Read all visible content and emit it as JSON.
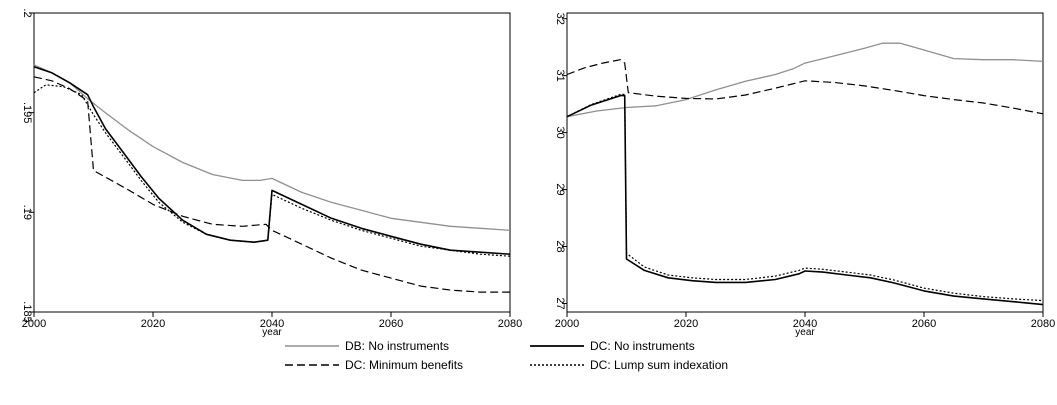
{
  "chart_data": [
    {
      "type": "line",
      "xlabel": "year",
      "ylabel": "",
      "xlim": [
        2000,
        2080
      ],
      "ylim": [
        0.185,
        0.2
      ],
      "xticks": [
        "2000",
        "2020",
        "2040",
        "2060",
        "2080"
      ],
      "xtick_values": [
        2000,
        2020,
        2040,
        2060,
        2080
      ],
      "yticks": [
        ".185",
        ".19",
        ".195",
        ".2"
      ],
      "ytick_values": [
        0.185,
        0.19,
        0.195,
        0.2
      ],
      "series": [
        {
          "name": "DB: No instruments",
          "points": [
            [
              2000,
              0.1974
            ],
            [
              2003,
              0.197
            ],
            [
              2006,
              0.1965
            ],
            [
              2009,
              0.1957
            ],
            [
              2012,
              0.195
            ],
            [
              2016,
              0.1941
            ],
            [
              2020,
              0.1933
            ],
            [
              2025,
              0.1925
            ],
            [
              2030,
              0.1919
            ],
            [
              2035,
              0.1916
            ],
            [
              2038,
              0.1916
            ],
            [
              2040,
              0.1917
            ],
            [
              2045,
              0.191
            ],
            [
              2050,
              0.1905
            ],
            [
              2055,
              0.1901
            ],
            [
              2060,
              0.1897
            ],
            [
              2065,
              0.1895
            ],
            [
              2070,
              0.1893
            ],
            [
              2075,
              0.1892
            ],
            [
              2080,
              0.1891
            ]
          ]
        },
        {
          "name": "DC: No instruments",
          "points": [
            [
              2000,
              0.1973
            ],
            [
              2003,
              0.197
            ],
            [
              2006,
              0.1965
            ],
            [
              2009,
              0.1959
            ],
            [
              2010,
              0.1953
            ],
            [
              2012,
              0.1942
            ],
            [
              2015,
              0.193
            ],
            [
              2018,
              0.1918
            ],
            [
              2021,
              0.1907
            ],
            [
              2025,
              0.1896
            ],
            [
              2029,
              0.1889
            ],
            [
              2033,
              0.1886
            ],
            [
              2037,
              0.1885
            ],
            [
              2039.3,
              0.1886
            ],
            [
              2040,
              0.1911
            ],
            [
              2045,
              0.1904
            ],
            [
              2050,
              0.1897
            ],
            [
              2055,
              0.1892
            ],
            [
              2060,
              0.1888
            ],
            [
              2065,
              0.1884
            ],
            [
              2070,
              0.1881
            ],
            [
              2075,
              0.188
            ],
            [
              2080,
              0.1879
            ]
          ]
        },
        {
          "name": "DC: Minimum benefits",
          "points": [
            [
              2000,
              0.1968
            ],
            [
              2003,
              0.1966
            ],
            [
              2006,
              0.1962
            ],
            [
              2009,
              0.1956
            ],
            [
              2010,
              0.1921
            ],
            [
              2013,
              0.1916
            ],
            [
              2016,
              0.1911
            ],
            [
              2020,
              0.1904
            ],
            [
              2025,
              0.1898
            ],
            [
              2030,
              0.1894
            ],
            [
              2035,
              0.1893
            ],
            [
              2039,
              0.1894
            ],
            [
              2040,
              0.1891
            ],
            [
              2045,
              0.1884
            ],
            [
              2050,
              0.1877
            ],
            [
              2055,
              0.1871
            ],
            [
              2060,
              0.1867
            ],
            [
              2065,
              0.1863
            ],
            [
              2070,
              0.1861
            ],
            [
              2075,
              0.186
            ],
            [
              2080,
              0.186
            ]
          ]
        },
        {
          "name": "DC: Lump sum indexation",
          "points": [
            [
              2000,
              0.196
            ],
            [
              2002,
              0.1964
            ],
            [
              2005,
              0.1963
            ],
            [
              2008,
              0.1959
            ],
            [
              2010,
              0.1949
            ],
            [
              2012,
              0.194
            ],
            [
              2015,
              0.1928
            ],
            [
              2018,
              0.1916
            ],
            [
              2021,
              0.1905
            ],
            [
              2025,
              0.1895
            ],
            [
              2029,
              0.1889
            ],
            [
              2033,
              0.1886
            ],
            [
              2037,
              0.1885
            ],
            [
              2039.3,
              0.1886
            ],
            [
              2040,
              0.1909
            ],
            [
              2045,
              0.1902
            ],
            [
              2050,
              0.1896
            ],
            [
              2055,
              0.1891
            ],
            [
              2060,
              0.1887
            ],
            [
              2065,
              0.1883
            ],
            [
              2070,
              0.1881
            ],
            [
              2075,
              0.1879
            ],
            [
              2080,
              0.1878
            ]
          ]
        }
      ]
    },
    {
      "type": "line",
      "xlabel": "year",
      "ylabel": "",
      "xlim": [
        2000,
        2080
      ],
      "ylim": [
        26.85,
        32.1
      ],
      "xticks": [
        "2000",
        "2020",
        "2040",
        "2060",
        "2080"
      ],
      "xtick_values": [
        2000,
        2020,
        2040,
        2060,
        2080
      ],
      "yticks": [
        "27",
        "28",
        "29",
        "30",
        "31",
        "32"
      ],
      "ytick_values": [
        27,
        28,
        29,
        30,
        31,
        32
      ],
      "series": [
        {
          "name": "DB: No instruments",
          "points": [
            [
              2000,
              30.28
            ],
            [
              2005,
              30.38
            ],
            [
              2010,
              30.44
            ],
            [
              2015,
              30.47
            ],
            [
              2020,
              30.58
            ],
            [
              2025,
              30.75
            ],
            [
              2030,
              30.9
            ],
            [
              2035,
              31.02
            ],
            [
              2038,
              31.12
            ],
            [
              2040,
              31.22
            ],
            [
              2045,
              31.35
            ],
            [
              2050,
              31.48
            ],
            [
              2053,
              31.57
            ],
            [
              2056,
              31.57
            ],
            [
              2060,
              31.45
            ],
            [
              2065,
              31.3
            ],
            [
              2070,
              31.28
            ],
            [
              2075,
              31.28
            ],
            [
              2080,
              31.25
            ]
          ]
        },
        {
          "name": "DC: No instruments",
          "points": [
            [
              2000,
              30.28
            ],
            [
              2004,
              30.48
            ],
            [
              2009,
              30.65
            ],
            [
              2009.7,
              30.65
            ],
            [
              2010,
              27.78
            ],
            [
              2013,
              27.58
            ],
            [
              2017,
              27.45
            ],
            [
              2021,
              27.4
            ],
            [
              2025,
              27.37
            ],
            [
              2030,
              27.37
            ],
            [
              2035,
              27.42
            ],
            [
              2039,
              27.52
            ],
            [
              2040,
              27.57
            ],
            [
              2043,
              27.55
            ],
            [
              2047,
              27.5
            ],
            [
              2051,
              27.45
            ],
            [
              2055,
              27.36
            ],
            [
              2060,
              27.22
            ],
            [
              2065,
              27.13
            ],
            [
              2070,
              27.08
            ],
            [
              2075,
              27.03
            ],
            [
              2080,
              26.98
            ]
          ]
        },
        {
          "name": "DC: Minimum benefits",
          "points": [
            [
              2000,
              31.02
            ],
            [
              2003,
              31.14
            ],
            [
              2006,
              31.22
            ],
            [
              2009,
              31.28
            ],
            [
              2009.7,
              31.22
            ],
            [
              2010.3,
              30.7
            ],
            [
              2015,
              30.64
            ],
            [
              2020,
              30.6
            ],
            [
              2025,
              30.59
            ],
            [
              2030,
              30.66
            ],
            [
              2035,
              30.78
            ],
            [
              2040,
              30.91
            ],
            [
              2045,
              30.88
            ],
            [
              2050,
              30.82
            ],
            [
              2055,
              30.74
            ],
            [
              2060,
              30.65
            ],
            [
              2065,
              30.58
            ],
            [
              2070,
              30.52
            ],
            [
              2075,
              30.43
            ],
            [
              2080,
              30.33
            ]
          ]
        },
        {
          "name": "DC: Lump sum indexation",
          "points": [
            [
              2000,
              30.28
            ],
            [
              2004,
              30.49
            ],
            [
              2009,
              30.67
            ],
            [
              2009.7,
              30.67
            ],
            [
              2010,
              27.88
            ],
            [
              2013,
              27.64
            ],
            [
              2017,
              27.5
            ],
            [
              2021,
              27.45
            ],
            [
              2025,
              27.42
            ],
            [
              2030,
              27.42
            ],
            [
              2035,
              27.48
            ],
            [
              2039,
              27.58
            ],
            [
              2040,
              27.62
            ],
            [
              2043,
              27.6
            ],
            [
              2047,
              27.55
            ],
            [
              2051,
              27.5
            ],
            [
              2055,
              27.41
            ],
            [
              2060,
              27.27
            ],
            [
              2065,
              27.18
            ],
            [
              2070,
              27.12
            ],
            [
              2075,
              27.08
            ],
            [
              2080,
              27.05
            ]
          ]
        }
      ]
    }
  ],
  "legend": {
    "placement": "bottom",
    "entries": [
      {
        "label": "DB: No instruments",
        "color": "#909090",
        "dash": "solid"
      },
      {
        "label": "DC: No instruments",
        "color": "#000000",
        "dash": "solid"
      },
      {
        "label": "DC: Minimum benefits",
        "color": "#000000",
        "dash": "dashed"
      },
      {
        "label": "DC: Lump sum indexation",
        "color": "#000000",
        "dash": "dotted"
      }
    ]
  }
}
